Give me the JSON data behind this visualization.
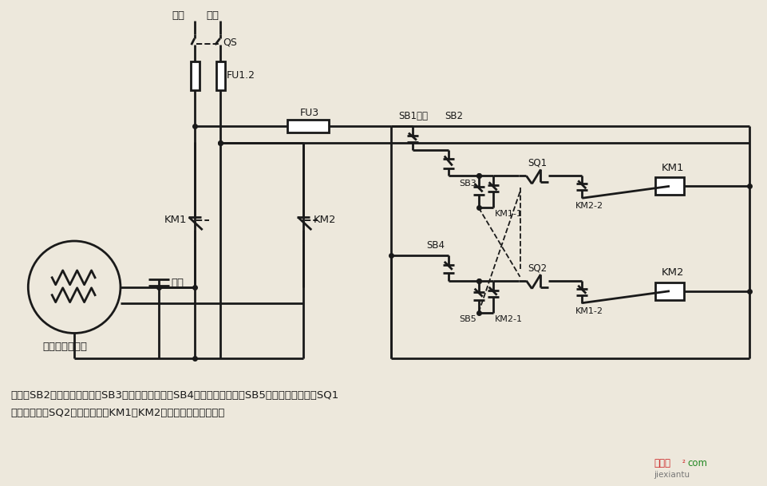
{
  "bg": "#ede8dc",
  "lc": "#1a1a1a",
  "lw": 2.0,
  "lw_thin": 1.4,
  "label_hx": "火线",
  "label_lx": "零线",
  "label_qs": "QS",
  "label_fu12": "FU1.2",
  "label_fu3": "FU3",
  "label_km1": "KM1",
  "label_km2": "KM2",
  "label_cap": "电容",
  "label_motor": "单相电容电动机",
  "label_sb1": "SB1停止",
  "label_sb2": "SB2",
  "label_sb3": "SB3",
  "label_sb4": "SB4",
  "label_sb5": "SB5",
  "label_sq1": "SQ1",
  "label_sq2": "SQ2",
  "label_km11": "KM1-1",
  "label_km21": "KM2-1",
  "label_km12": "KM1-2",
  "label_km22": "KM2-2",
  "label_km1c": "KM1",
  "label_km2c": "KM2",
  "note1": "说明：SB2为上升启动按鈕，SB3为上升点动按鈕，SB4为下降启动按鈕，SB5为下降点动按鈕；SQ1",
  "note2": "为最高限位，SQ2为最低限位。KM1、KM2可用中间继电器代替。"
}
